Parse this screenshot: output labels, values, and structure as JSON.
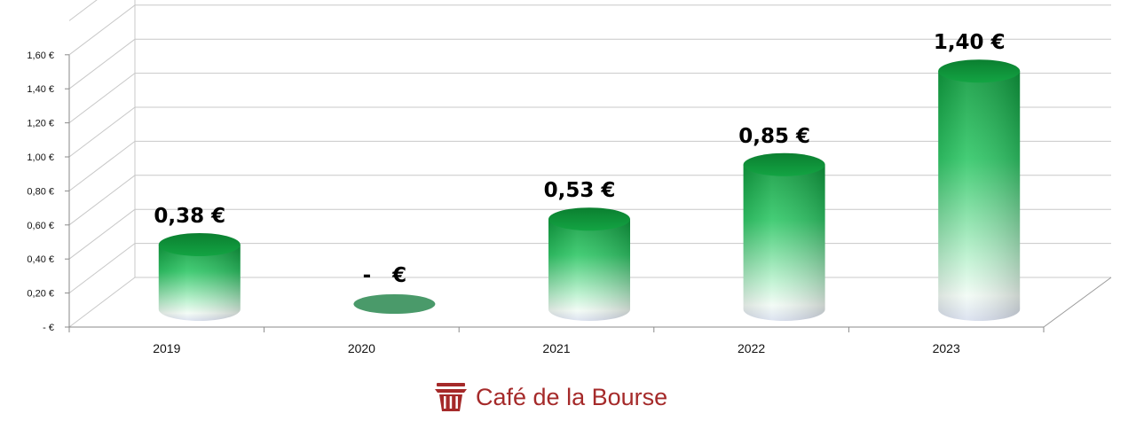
{
  "chart_data": {
    "type": "bar",
    "style": "3d-cylinder",
    "categories": [
      "2019",
      "2020",
      "2021",
      "2022",
      "2023"
    ],
    "values": [
      0.38,
      0,
      0.53,
      0.85,
      1.4
    ],
    "data_labels": [
      "0,38 €",
      "-   €",
      "0,53 €",
      "0,85 €",
      "1,40 €"
    ],
    "y_ticks": [
      {
        "value": 0,
        "label": "-  €"
      },
      {
        "value": 0.2,
        "label": "0,20 €"
      },
      {
        "value": 0.4,
        "label": "0,40 €"
      },
      {
        "value": 0.6,
        "label": "0,60 €"
      },
      {
        "value": 0.8,
        "label": "0,80 €"
      },
      {
        "value": 1.0,
        "label": "1,00 €"
      },
      {
        "value": 1.2,
        "label": "1,20 €"
      },
      {
        "value": 1.4,
        "label": "1,40 €"
      },
      {
        "value": 1.6,
        "label": "1,60 €"
      }
    ],
    "ylim": [
      0,
      1.8
    ],
    "grid": true,
    "legend": "none",
    "colors": {
      "bar_top": "#0a8a35",
      "bar_mid": "#22c05a",
      "bar_bottom": "#e6ecf5",
      "zero_ellipse": "#4a9a6a",
      "grid": "#c8c8c8"
    }
  },
  "brand": {
    "name": "Café de la Bourse",
    "icon": "cafe-basket-logo-icon",
    "color": "#a52a2a"
  }
}
